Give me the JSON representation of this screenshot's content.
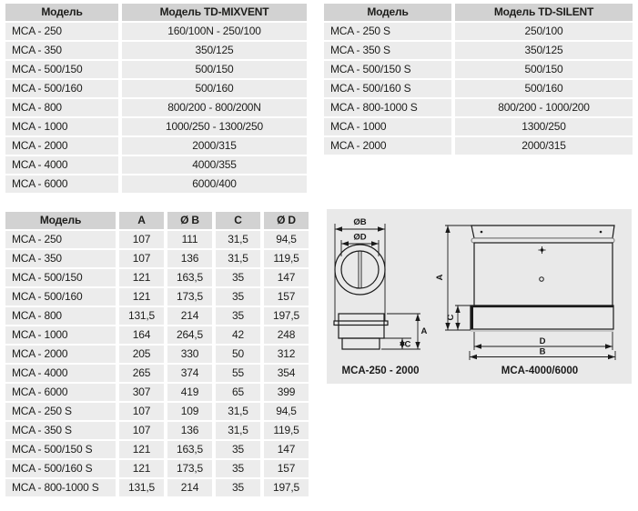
{
  "colors": {
    "header_bg": "#d2d2d2",
    "row_bg": "#ececec",
    "panel_bg": "#e9e9e9",
    "text": "#1d1d1b",
    "line": "#1a1a1a"
  },
  "table_mixvent": {
    "headers": [
      "Модель",
      "Модель TD-MIXVENT"
    ],
    "rows": [
      [
        "MCA - 250",
        "160/100N - 250/100"
      ],
      [
        "MCA - 350",
        "350/125"
      ],
      [
        "MCA - 500/150",
        "500/150"
      ],
      [
        "MCA - 500/160",
        "500/160"
      ],
      [
        "MCA - 800",
        "800/200 - 800/200N"
      ],
      [
        "MCA - 1000",
        "1000/250 - 1300/250"
      ],
      [
        "MCA - 2000",
        "2000/315"
      ],
      [
        "MCA - 4000",
        "4000/355"
      ],
      [
        "MCA - 6000",
        "6000/400"
      ]
    ]
  },
  "table_silent": {
    "headers": [
      "Модель",
      "Модель TD-SILENT"
    ],
    "rows": [
      [
        "MCA - 250 S",
        "250/100"
      ],
      [
        "MCA - 350 S",
        "350/125"
      ],
      [
        "MCA - 500/150 S",
        "500/150"
      ],
      [
        "MCA - 500/160 S",
        "500/160"
      ],
      [
        "MCA - 800-1000 S",
        "800/200 - 1000/200"
      ],
      [
        "MCA - 1000",
        "1300/250"
      ],
      [
        "MCA - 2000",
        "2000/315"
      ]
    ]
  },
  "table_dimensions": {
    "headers": [
      "Модель",
      "A",
      "Ø B",
      "C",
      "Ø D"
    ],
    "rows": [
      [
        "MCA - 250",
        "107",
        "111",
        "31,5",
        "94,5"
      ],
      [
        "MCA - 350",
        "107",
        "136",
        "31,5",
        "119,5"
      ],
      [
        "MCA - 500/150",
        "121",
        "163,5",
        "35",
        "147"
      ],
      [
        "MCA - 500/160",
        "121",
        "173,5",
        "35",
        "157"
      ],
      [
        "MCA - 800",
        "131,5",
        "214",
        "35",
        "197,5"
      ],
      [
        "MCA - 1000",
        "164",
        "264,5",
        "42",
        "248"
      ],
      [
        "MCA - 2000",
        "205",
        "330",
        "50",
        "312"
      ],
      [
        "MCA - 4000",
        "265",
        "374",
        "55",
        "354"
      ],
      [
        "MCA - 6000",
        "307",
        "419",
        "65",
        "399"
      ],
      [
        "MCA - 250 S",
        "107",
        "109",
        "31,5",
        "94,5"
      ],
      [
        "MCA - 350 S",
        "107",
        "136",
        "31,5",
        "119,5"
      ],
      [
        "MCA - 500/150 S",
        "121",
        "163,5",
        "35",
        "147"
      ],
      [
        "MCA - 500/160 S",
        "121",
        "173,5",
        "35",
        "157"
      ],
      [
        "MCA - 800-1000 S",
        "131,5",
        "214",
        "35",
        "197,5"
      ]
    ]
  },
  "diagram": {
    "labels": {
      "diameter_b": "ØB",
      "diameter_d": "ØD",
      "a": "A",
      "c": "C",
      "d": "D",
      "b": "B"
    },
    "captions": {
      "left": "MCA-250 - 2000",
      "right": "MCA-4000/6000"
    }
  }
}
